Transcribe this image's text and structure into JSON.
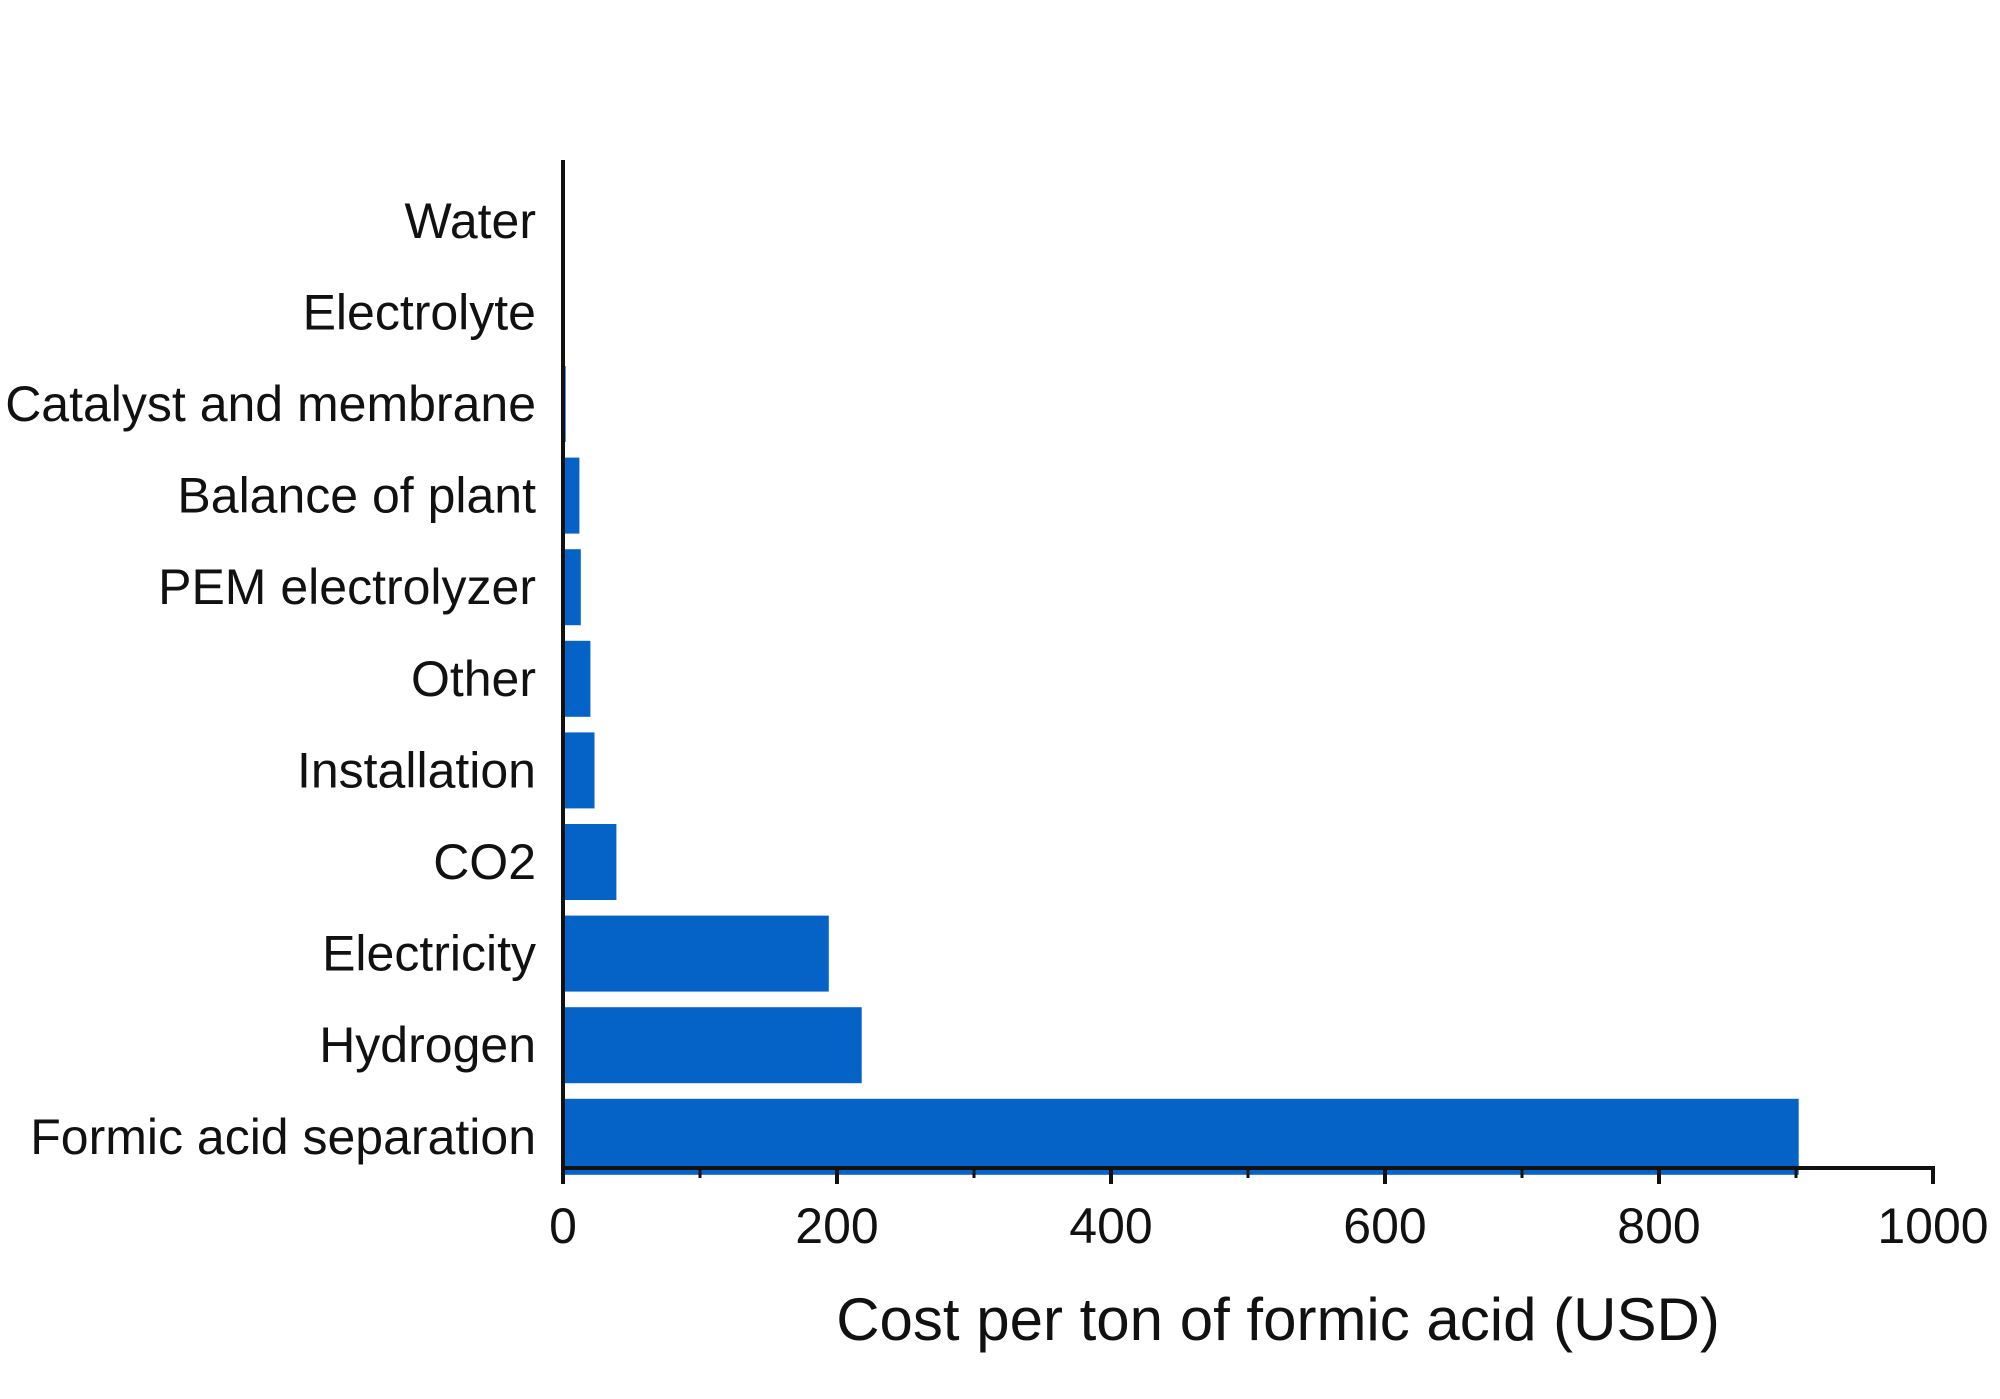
{
  "chart_data": {
    "type": "bar",
    "orientation": "horizontal",
    "title": "",
    "xlabel": "Cost per ton of formic acid (USD)",
    "ylabel": "",
    "xlim": [
      0,
      1000
    ],
    "x_ticks": [
      "0",
      "200",
      "400",
      "600",
      "800",
      "1000"
    ],
    "grid": false,
    "legend": "none",
    "bar_color": "#0563C8",
    "categories": [
      "Water",
      "Electrolyte",
      "Catalyst and membrane",
      "Balance of plant",
      "PEM electrolyzer",
      "Other",
      "Installation",
      "CO2",
      "Electricity",
      "Hydrogen",
      "Formic acid separation"
    ],
    "values": [
      0,
      0,
      2,
      12,
      13,
      20,
      23,
      39,
      194,
      218,
      902
    ]
  }
}
